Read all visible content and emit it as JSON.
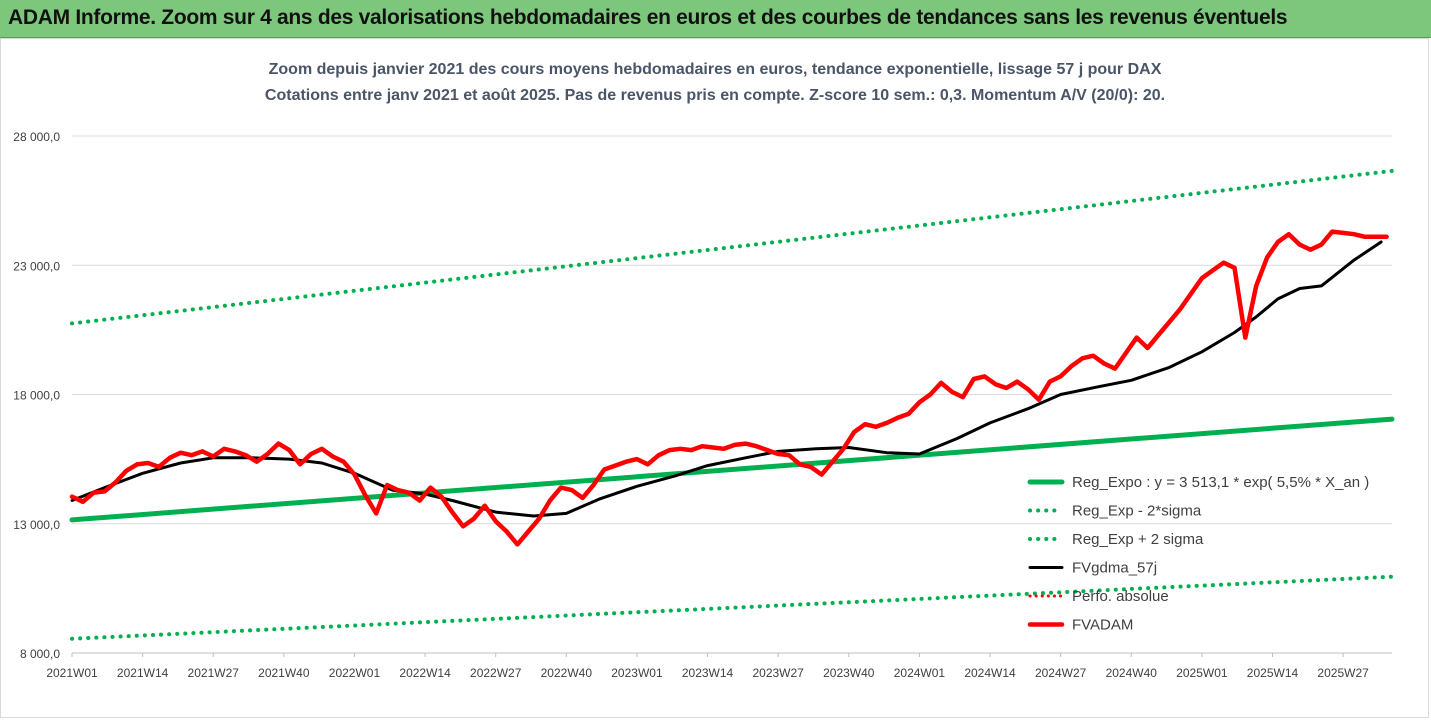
{
  "header": {
    "title": "ADAM Informe. Zoom sur 4 ans des valorisations hebdomadaires en euros et des courbes de tendances sans les revenus éventuels"
  },
  "colors": {
    "banner": "#7dc77d",
    "regression": "#00b050",
    "sigma": "#00b050",
    "fvgdma": "#000000",
    "perfo_absolue": "#ff0000",
    "fvadam": "#ff0000"
  },
  "chart_data": {
    "type": "line",
    "title": "Zoom depuis janvier 2021 des cours moyens hebdomadaires en euros, tendance exponentielle, lissage 57 j pour DAX",
    "subtitle": "Cotations entre janv 2021 et août 2025.  Pas de revenus pris en compte. Z-score 10 sem.: 0,3. Momentum A/V (20/0): 20.",
    "xlabel": "",
    "ylabel": "",
    "ylim": [
      8000,
      28000
    ],
    "y_ticks": [
      8000,
      13000,
      18000,
      23000,
      28000
    ],
    "y_tick_labels": [
      "8 000,0",
      "13 000,0",
      "18 000,0",
      "23 000,0",
      "28 000,0"
    ],
    "x_tick_labels": [
      "2021W01",
      "2021W14",
      "2021W27",
      "2021W40",
      "2022W01",
      "2022W14",
      "2022W27",
      "2022W40",
      "2023W01",
      "2023W14",
      "2023W27",
      "2023W40",
      "2024W01",
      "2024W14",
      "2024W27",
      "2024W40",
      "2025W01",
      "2025W14",
      "2025W27"
    ],
    "x_range_weeks": [
      0,
      243
    ],
    "grid": "horizontal",
    "legend_position": "right",
    "series": [
      {
        "name": "Reg_Expo : y = 3 513,1 * exp( 5,5% *  X_an )",
        "style": "solid",
        "x": [
          0,
          243
        ],
        "values": [
          13150,
          17050
        ]
      },
      {
        "name": "Reg_Exp - 2*sigma",
        "style": "dotted",
        "x": [
          0,
          243
        ],
        "values": [
          8550,
          10950
        ]
      },
      {
        "name": "Reg_Exp + 2 sigma",
        "style": "dotted",
        "x": [
          0,
          243
        ],
        "values": [
          20750,
          26650
        ]
      },
      {
        "name": "FVgdma_57j",
        "style": "solid-thin",
        "x": [
          0,
          6,
          13,
          20,
          26,
          33,
          40,
          46,
          52,
          59,
          65,
          70,
          78,
          85,
          91,
          97,
          104,
          111,
          117,
          124,
          130,
          137,
          143,
          150,
          156,
          163,
          169,
          176,
          182,
          189,
          195,
          202,
          208,
          214,
          218,
          222,
          226,
          230,
          236,
          241
        ],
        "values": [
          13900,
          14400,
          14950,
          15350,
          15550,
          15550,
          15500,
          15350,
          14950,
          14300,
          14150,
          13900,
          13450,
          13300,
          13400,
          13950,
          14450,
          14850,
          15250,
          15550,
          15800,
          15900,
          15950,
          15750,
          15700,
          16300,
          16900,
          17450,
          18000,
          18300,
          18550,
          19050,
          19650,
          20400,
          21000,
          21700,
          22100,
          22200,
          23200,
          23900
        ]
      },
      {
        "name": "Perfo. absolue",
        "style": "dotted",
        "x": [],
        "values": []
      },
      {
        "name": "FVADAM",
        "style": "thick",
        "x": [
          0,
          2,
          4,
          6,
          8,
          10,
          12,
          14,
          16,
          18,
          20,
          22,
          24,
          26,
          28,
          30,
          32,
          34,
          36,
          38,
          40,
          42,
          44,
          46,
          48,
          50,
          52,
          54,
          56,
          58,
          60,
          62,
          64,
          66,
          68,
          70,
          72,
          74,
          76,
          78,
          80,
          82,
          84,
          86,
          88,
          90,
          92,
          94,
          96,
          98,
          100,
          102,
          104,
          106,
          108,
          110,
          112,
          114,
          116,
          118,
          120,
          122,
          124,
          126,
          128,
          130,
          132,
          134,
          136,
          138,
          140,
          142,
          144,
          146,
          148,
          150,
          152,
          154,
          156,
          158,
          160,
          162,
          164,
          166,
          168,
          170,
          172,
          174,
          176,
          178,
          180,
          182,
          184,
          186,
          188,
          190,
          192,
          194,
          196,
          198,
          200,
          202,
          204,
          206,
          208,
          210,
          212,
          214,
          216,
          218,
          220,
          222,
          224,
          226,
          228,
          230,
          232,
          234,
          236,
          238,
          240,
          242
        ],
        "values": [
          14050,
          13850,
          14200,
          14250,
          14600,
          15050,
          15300,
          15350,
          15200,
          15550,
          15750,
          15650,
          15800,
          15600,
          15900,
          15800,
          15650,
          15400,
          15700,
          16100,
          15850,
          15300,
          15700,
          15900,
          15600,
          15400,
          14900,
          14100,
          13400,
          14500,
          14300,
          14200,
          13900,
          14400,
          14050,
          13450,
          12900,
          13200,
          13700,
          13100,
          12700,
          12200,
          12700,
          13200,
          13900,
          14400,
          14300,
          14000,
          14500,
          15100,
          15250,
          15400,
          15500,
          15300,
          15650,
          15850,
          15900,
          15850,
          16000,
          15950,
          15900,
          16050,
          16100,
          16000,
          15850,
          15700,
          15650,
          15300,
          15200,
          14900,
          15400,
          15900,
          16550,
          16850,
          16750,
          16900,
          17100,
          17250,
          17700,
          18000,
          18450,
          18100,
          17900,
          18600,
          18700,
          18400,
          18250,
          18500,
          18200,
          17800,
          18500,
          18700,
          19100,
          19400,
          19500,
          19200,
          19000,
          19600,
          20200,
          19800,
          20300,
          20800,
          21300,
          21900,
          22500,
          22800,
          23100,
          22900,
          20200,
          22200,
          23300,
          23900,
          24200,
          23800,
          23600,
          23800,
          24300,
          24250,
          24200,
          24100,
          24100,
          24100
        ]
      }
    ]
  }
}
